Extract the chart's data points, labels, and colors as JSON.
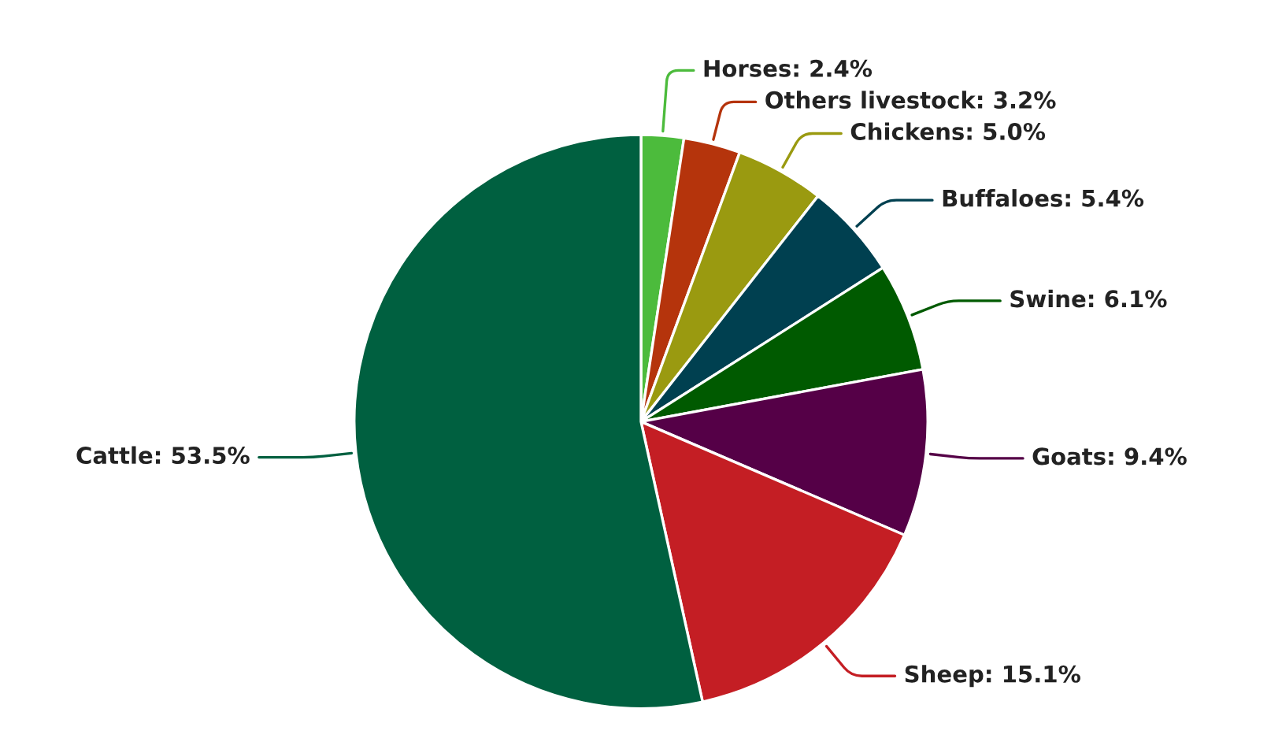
{
  "chart_data": {
    "type": "pie",
    "categories": [
      "Horses",
      "Others livestock",
      "Chickens",
      "Buffaloes",
      "Swine",
      "Goats",
      "Sheep",
      "Cattle"
    ],
    "values": [
      2.4,
      3.2,
      5.0,
      5.4,
      6.1,
      9.4,
      15.1,
      53.5
    ],
    "value_labels": [
      "2.4%",
      "3.2%",
      "5.0%",
      "5.4%",
      "6.1%",
      "9.4%",
      "15.1%",
      "53.5%"
    ],
    "colors": [
      "#4cbb3c",
      "#b5340c",
      "#9a9a10",
      "#004050",
      "#005a00",
      "#550047",
      "#c41e24",
      "#006040"
    ],
    "legend": false
  }
}
